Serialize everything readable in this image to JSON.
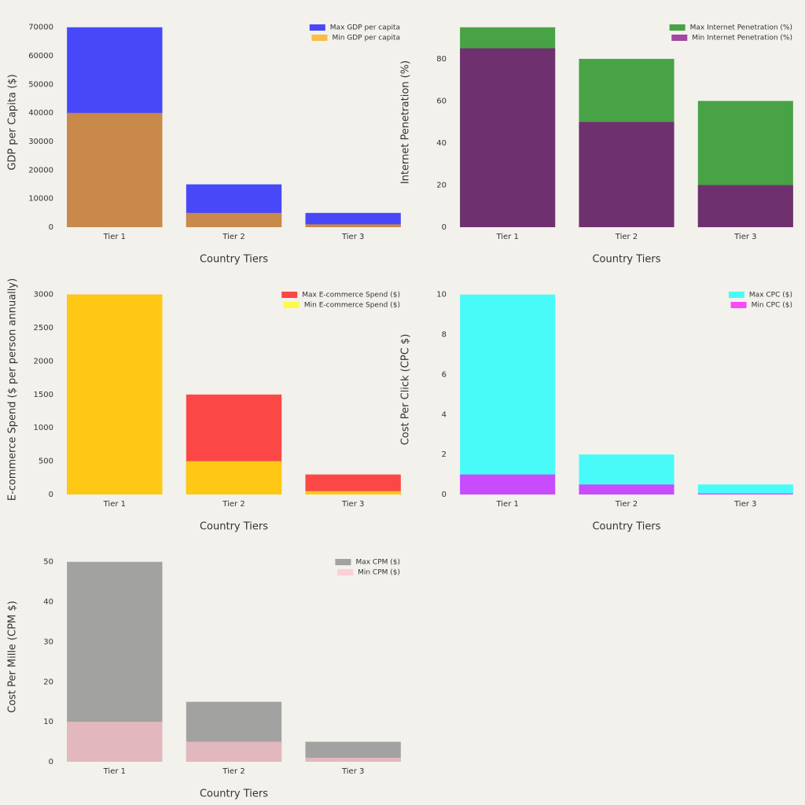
{
  "chart_data": [
    {
      "type": "bar",
      "categories": [
        "Tier 1",
        "Tier 2",
        "Tier 3"
      ],
      "x_label": "Country Tiers",
      "y_label": "GDP per Capita ($)",
      "series": [
        {
          "name": "Max GDP per capita",
          "color": "#0000ff",
          "values": [
            70000,
            15000,
            5000
          ]
        },
        {
          "name": "Min GDP per capita",
          "color": "#ffa500",
          "values": [
            40000,
            5000,
            1000
          ]
        }
      ],
      "ylim": [
        0,
        73500
      ],
      "yticks": [
        0,
        10000,
        20000,
        30000,
        40000,
        50000,
        60000,
        70000
      ],
      "legend": "upper right",
      "alpha": 0.7
    },
    {
      "type": "bar",
      "categories": [
        "Tier 1",
        "Tier 2",
        "Tier 3"
      ],
      "x_label": "Country Tiers",
      "y_label": "Internet Penetration (%)",
      "series": [
        {
          "name": "Max Internet Penetration (%)",
          "color": "#008000",
          "values": [
            95,
            80,
            60
          ]
        },
        {
          "name": "Min Internet Penetration (%)",
          "color": "#800080",
          "values": [
            85,
            50,
            20
          ]
        }
      ],
      "ylim": [
        0,
        99.75
      ],
      "yticks": [
        0,
        20,
        40,
        60,
        80
      ],
      "legend": "upper right",
      "alpha": 0.7
    },
    {
      "type": "bar",
      "categories": [
        "Tier 1",
        "Tier 2",
        "Tier 3"
      ],
      "x_label": "Country Tiers",
      "y_label": "E-commerce Spend ($ per person annually)",
      "series": [
        {
          "name": "Max E-commerce Spend ($)",
          "color": "#ff0000",
          "values": [
            3000,
            1500,
            300
          ]
        },
        {
          "name": "Min E-commerce Spend ($)",
          "color": "#ffff00",
          "values": [
            3000,
            500,
            50
          ]
        }
      ],
      "ylim": [
        0,
        3150
      ],
      "yticks": [
        0,
        500,
        1000,
        1500,
        2000,
        2500,
        3000
      ],
      "legend": "upper right",
      "alpha": 0.7
    },
    {
      "type": "bar",
      "categories": [
        "Tier 1",
        "Tier 2",
        "Tier 3"
      ],
      "x_label": "Country Tiers",
      "y_label": "Cost Per Click (CPC $)",
      "series": [
        {
          "name": "Max CPC ($)",
          "color": "#00ffff",
          "values": [
            10,
            2,
            0.5
          ]
        },
        {
          "name": "Min CPC ($)",
          "color": "#ff00ff",
          "values": [
            1,
            0.5,
            0.05
          ]
        }
      ],
      "ylim": [
        0,
        10.5
      ],
      "yticks": [
        0,
        2,
        4,
        6,
        8,
        10
      ],
      "legend": "upper right",
      "alpha": 0.7
    },
    {
      "type": "bar",
      "categories": [
        "Tier 1",
        "Tier 2",
        "Tier 3"
      ],
      "x_label": "Country Tiers",
      "y_label": "Cost Per Mille (CPM $)",
      "series": [
        {
          "name": "Max CPM ($)",
          "color": "#808080",
          "values": [
            50,
            15,
            5
          ]
        },
        {
          "name": "Min CPM ($)",
          "color": "#ffc0cb",
          "values": [
            10,
            5,
            1
          ]
        }
      ],
      "ylim": [
        0,
        52.5
      ],
      "yticks": [
        0,
        10,
        20,
        30,
        40,
        50
      ],
      "legend": "upper right",
      "alpha": 0.7
    }
  ]
}
